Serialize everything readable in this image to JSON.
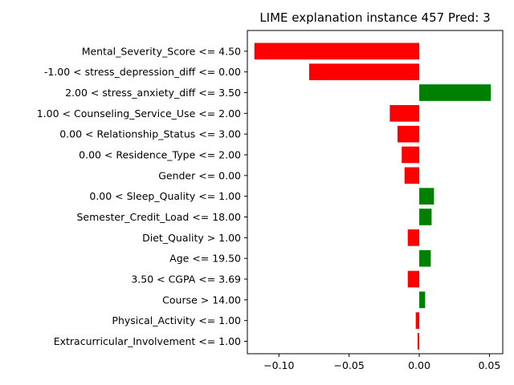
{
  "chart_data": {
    "type": "bar",
    "orientation": "horizontal",
    "title": "LIME explanation instance 457 Pred: 3",
    "xlabel": "",
    "ylabel": "",
    "xlim": [
      -0.1225,
      0.0595
    ],
    "grid": false,
    "x_ticks": [
      -0.1,
      -0.05,
      0.0,
      0.05
    ],
    "x_tick_labels": [
      "−0.10",
      "−0.05",
      "0.00",
      "0.05"
    ],
    "colors": {
      "positive": "#008000",
      "negative": "#ff0000"
    },
    "categories": [
      "Mental_Severity_Score <= 4.50",
      "-1.00 < stress_depression_diff <= 0.00",
      "2.00 < stress_anxiety_diff <= 3.50",
      "1.00 < Counseling_Service_Use <= 2.00",
      "0.00 < Relationship_Status <= 3.00",
      "0.00 < Residence_Type <= 2.00",
      "Gender <= 0.00",
      "0.00 < Sleep_Quality <= 1.00",
      "Semester_Credit_Load <= 18.00",
      "Diet_Quality > 1.00",
      "Age <= 19.50",
      "3.50 < CGPA <= 3.69",
      "Course > 14.00",
      "Physical_Activity <= 1.00",
      "Extracurricular_Involvement <= 1.00"
    ],
    "values": [
      -0.1175,
      -0.0785,
      0.051,
      -0.021,
      -0.0155,
      -0.0125,
      -0.0105,
      0.0105,
      0.0088,
      -0.0082,
      0.0082,
      -0.0082,
      0.0042,
      -0.0025,
      -0.0012
    ]
  }
}
